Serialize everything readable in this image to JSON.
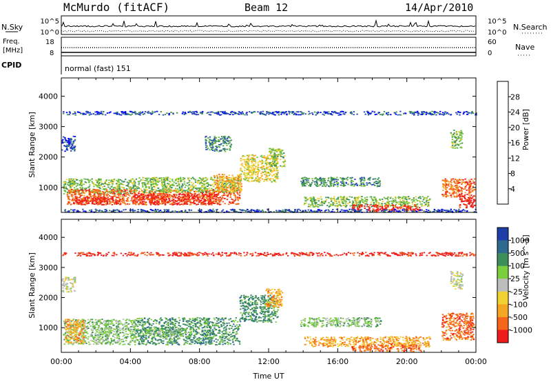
{
  "header": {
    "station": "McMurdo (fitACF)",
    "beam": "Beam 12",
    "date": "14/Apr/2010"
  },
  "noise_panel": {
    "left_label": "N.Sky",
    "left_ticks": [
      "10^5",
      "10^0"
    ],
    "right_ticks": [
      "10^5",
      "10^0"
    ],
    "right_label": "N.Search"
  },
  "freq_panel": {
    "left_label_top": "Freq.",
    "left_label_bottom": "[MHz]",
    "left_ticks": [
      "18",
      "8"
    ],
    "right_ticks": [
      "60",
      "0"
    ],
    "right_label": "Nave"
  },
  "cpid_panel": {
    "label": "CPID",
    "text": "normal (fast) 151"
  },
  "chart_data": [
    {
      "type": "heatmap",
      "name": "power",
      "ylabel": "Slant Range [km]",
      "xlabel": "Time UT",
      "x_ticks": [
        "00:00",
        "04:00",
        "08:00",
        "12:00",
        "16:00",
        "20:00",
        "00:00"
      ],
      "xlim_hours": [
        0,
        24
      ],
      "y_ticks": [
        1000,
        2000,
        3000,
        4000
      ],
      "ylim": [
        180,
        4600
      ],
      "colorbar": {
        "label": "Power [dB]",
        "ticks": [
          "4",
          "8",
          "12",
          "16",
          "20",
          "24",
          "28"
        ],
        "colors": [
          "#0000ff",
          "#2747b7",
          "#3d8f5a",
          "#6fbf3f",
          "#f2d233",
          "#f5a623",
          "#f5661a",
          "#ef1c1c"
        ]
      },
      "regions": [
        {
          "x": [
            0.1,
            4.3
          ],
          "y": [
            800,
            1300
          ],
          "level": 3
        },
        {
          "x": [
            0.3,
            10.3
          ],
          "y": [
            450,
            950
          ],
          "level": 6
        },
        {
          "x": [
            0.8,
            3.5
          ],
          "y": [
            450,
            700
          ],
          "level": 7
        },
        {
          "x": [
            4.0,
            9.2
          ],
          "y": [
            450,
            820
          ],
          "level": 7
        },
        {
          "x": [
            4.3,
            10.3
          ],
          "y": [
            850,
            1350
          ],
          "level": 3
        },
        {
          "x": [
            8.8,
            10.4
          ],
          "y": [
            850,
            1450
          ],
          "level": 5
        },
        {
          "x": [
            10.3,
            12.5
          ],
          "y": [
            1200,
            2100
          ],
          "level": 4
        },
        {
          "x": [
            12.0,
            12.9
          ],
          "y": [
            1700,
            2300
          ],
          "level": 3
        },
        {
          "x": [
            0.0,
            0.8
          ],
          "y": [
            2200,
            2700
          ],
          "level": 1
        },
        {
          "x": [
            8.3,
            9.8
          ],
          "y": [
            2200,
            2700
          ],
          "level": 2
        },
        {
          "x": [
            13.8,
            18.5
          ],
          "y": [
            1050,
            1350
          ],
          "level": 2
        },
        {
          "x": [
            14.0,
            21.3
          ],
          "y": [
            380,
            720
          ],
          "level": 3
        },
        {
          "x": [
            16.8,
            20.8
          ],
          "y": [
            230,
            450
          ],
          "level": 7
        },
        {
          "x": [
            22.0,
            23.9
          ],
          "y": [
            700,
            1300
          ],
          "level": 6
        },
        {
          "x": [
            23.0,
            23.9
          ],
          "y": [
            350,
            800
          ],
          "level": 7
        },
        {
          "x": [
            22.5,
            23.2
          ],
          "y": [
            2300,
            2900
          ],
          "level": 3
        },
        {
          "x": [
            0.0,
            24.0
          ],
          "y": [
            3400,
            3520
          ],
          "level": 1
        },
        {
          "x": [
            0.0,
            24.0
          ],
          "y": [
            200,
            300
          ],
          "level": 1
        }
      ]
    },
    {
      "type": "heatmap",
      "name": "velocity",
      "ylabel": "Slant Range [km]",
      "xlabel": "Time UT",
      "x_ticks": [
        "00:00",
        "04:00",
        "08:00",
        "12:00",
        "16:00",
        "20:00",
        "00:00"
      ],
      "xlim_hours": [
        0,
        24
      ],
      "y_ticks": [
        1000,
        2000,
        3000,
        4000
      ],
      "ylim": [
        180,
        4600
      ],
      "colorbar": {
        "label": "Velocity [m s^-1]",
        "ticks": [
          "1000",
          "500",
          "100",
          "25",
          "-25",
          "-100",
          "-500",
          "-1000"
        ],
        "colors": [
          "#1f3fa8",
          "#2c6a8f",
          "#3d8f5a",
          "#7bcf3f",
          "#bdbdbd",
          "#f2d233",
          "#f5a623",
          "#f5661a",
          "#ef1c1c"
        ]
      },
      "regions": [
        {
          "x": [
            0.1,
            4.3
          ],
          "y": [
            450,
            1300
          ],
          "level": 3
        },
        {
          "x": [
            0.2,
            1.3
          ],
          "y": [
            500,
            1300
          ],
          "level": 6
        },
        {
          "x": [
            4.3,
            10.3
          ],
          "y": [
            450,
            1350
          ],
          "level": 2
        },
        {
          "x": [
            4.8,
            7.5
          ],
          "y": [
            700,
            1000
          ],
          "level": 3
        },
        {
          "x": [
            10.3,
            12.5
          ],
          "y": [
            1200,
            2100
          ],
          "level": 2
        },
        {
          "x": [
            11.8,
            12.8
          ],
          "y": [
            1700,
            2300
          ],
          "level": 6
        },
        {
          "x": [
            0.0,
            0.8
          ],
          "y": [
            2200,
            2700
          ],
          "level": 4
        },
        {
          "x": [
            13.8,
            18.5
          ],
          "y": [
            1050,
            1350
          ],
          "level": 3
        },
        {
          "x": [
            14.0,
            21.3
          ],
          "y": [
            380,
            720
          ],
          "level": 6
        },
        {
          "x": [
            16.8,
            20.8
          ],
          "y": [
            230,
            450
          ],
          "level": 7
        },
        {
          "x": [
            22.0,
            23.9
          ],
          "y": [
            600,
            1500
          ],
          "level": 7
        },
        {
          "x": [
            22.5,
            23.2
          ],
          "y": [
            2300,
            2900
          ],
          "level": 4
        },
        {
          "x": [
            0.0,
            24.0
          ],
          "y": [
            3400,
            3520
          ],
          "level": 8
        }
      ]
    }
  ]
}
